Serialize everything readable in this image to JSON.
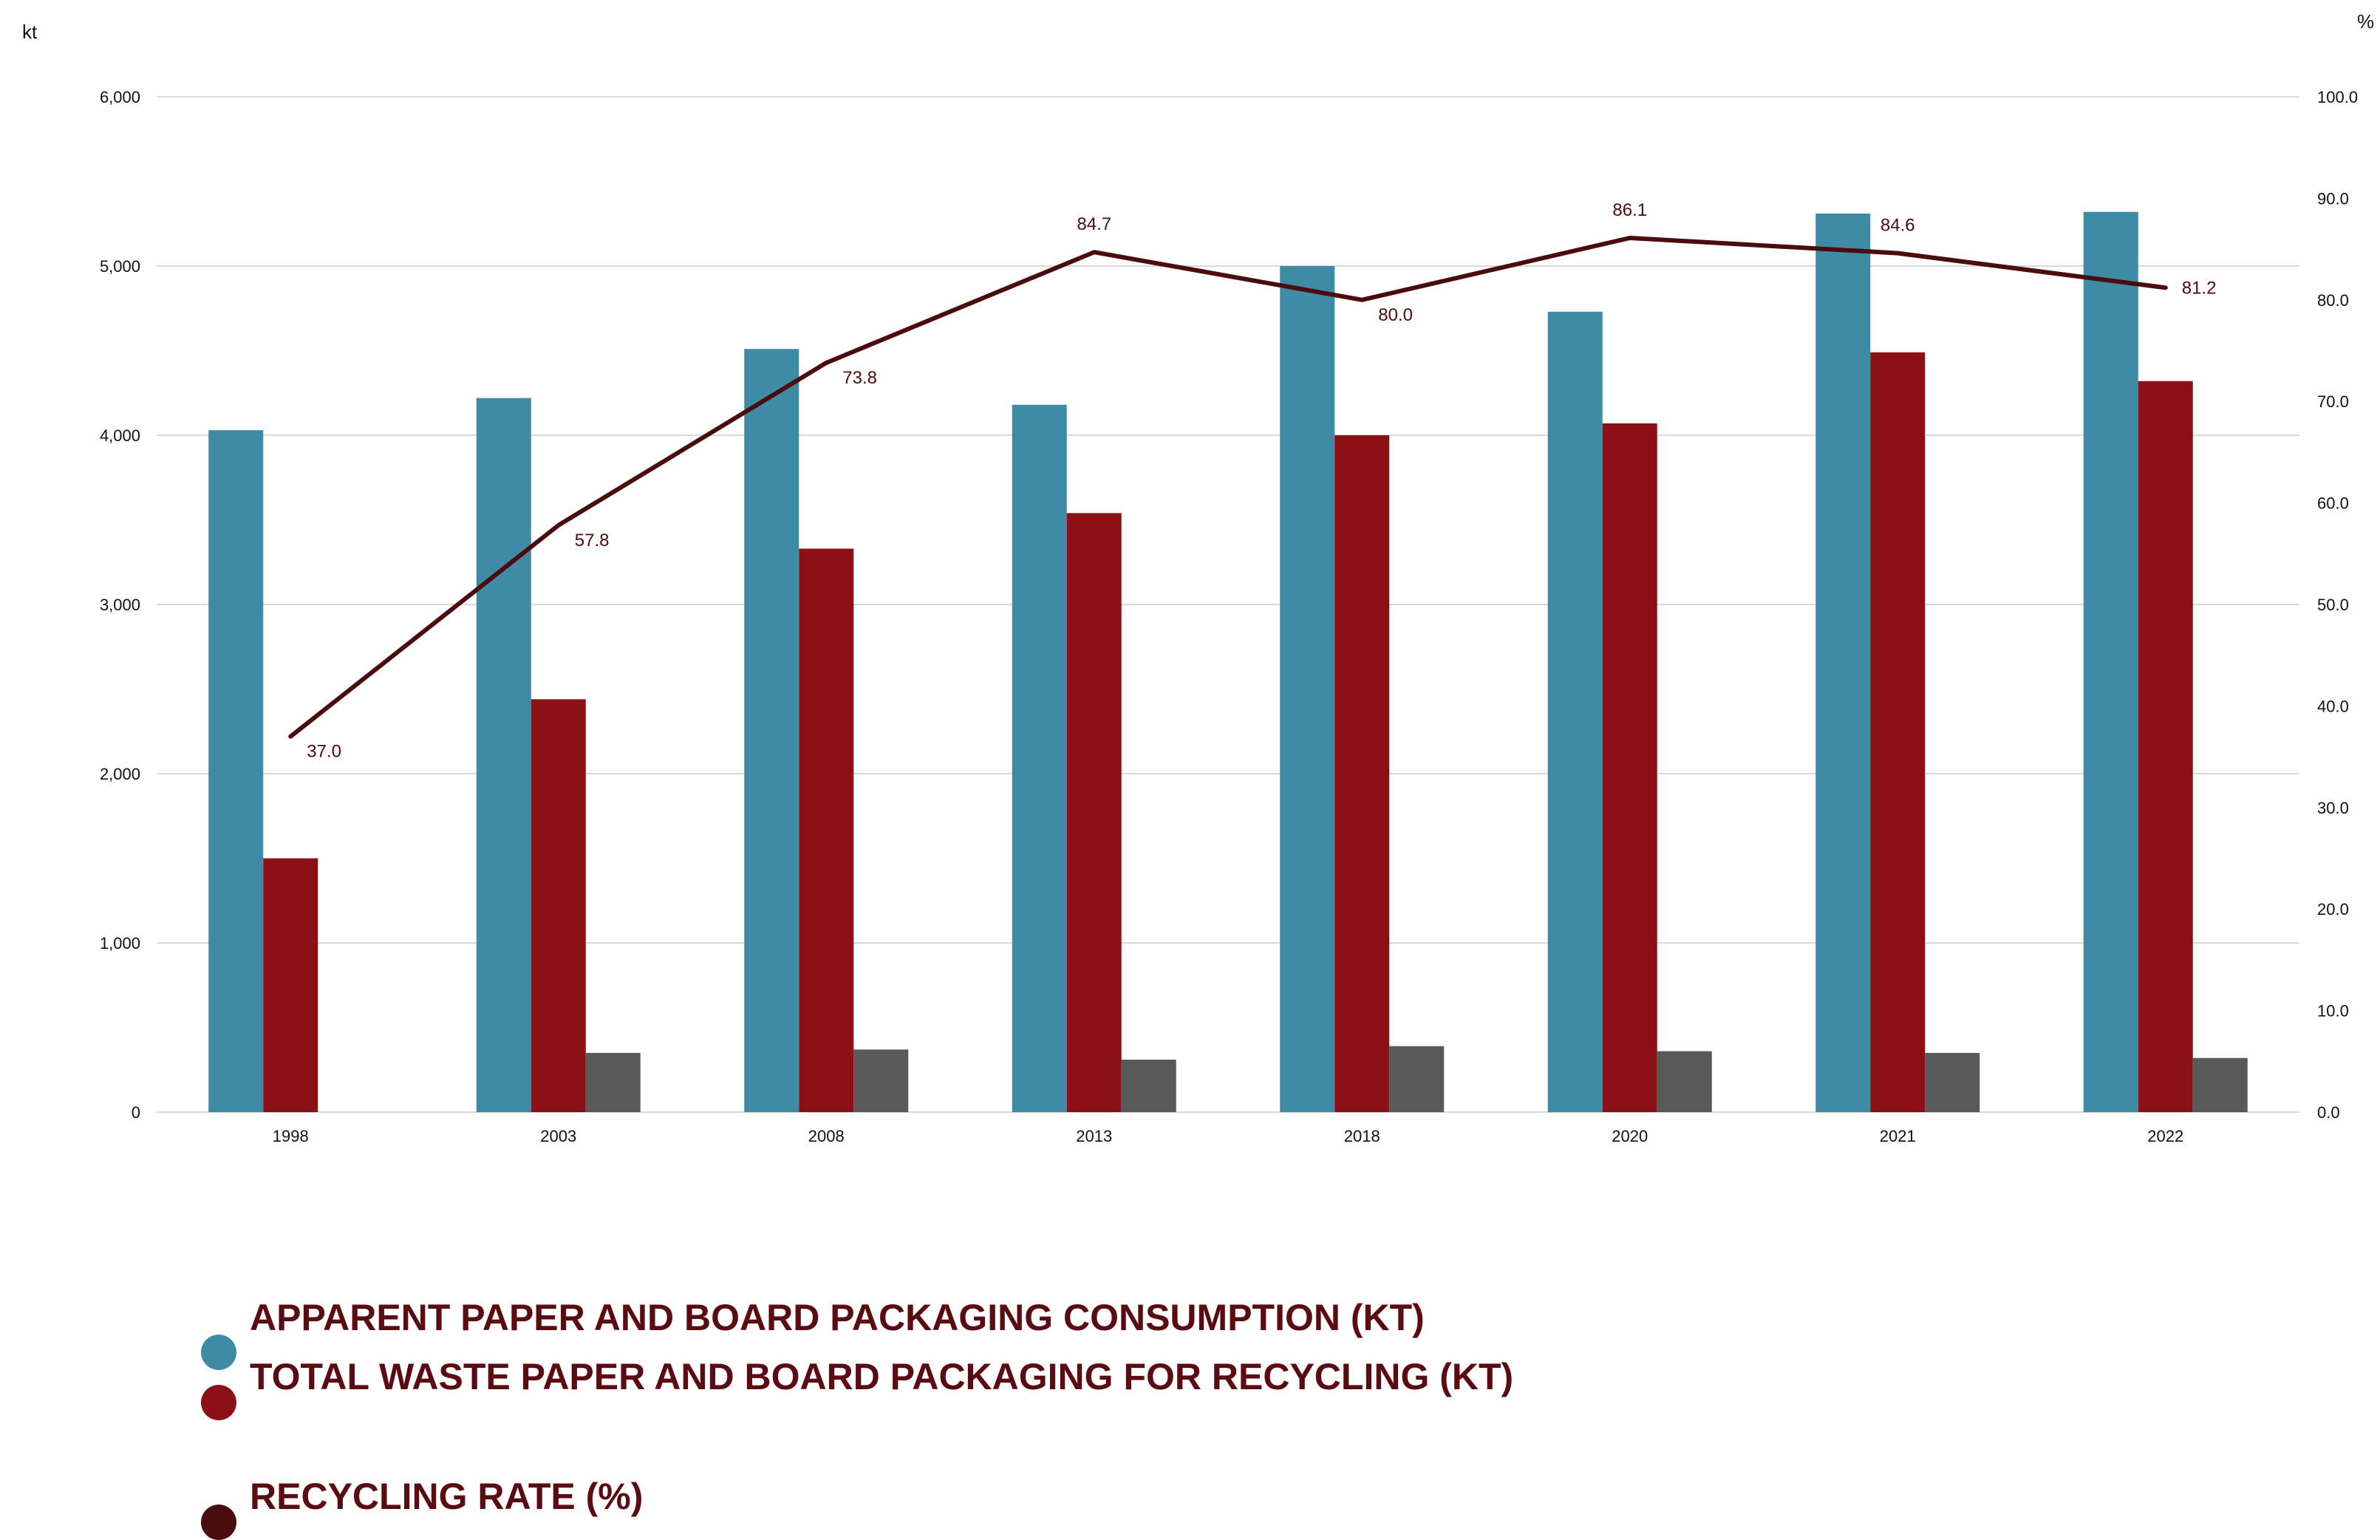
{
  "chart_data": {
    "type": "bar",
    "categories": [
      "1998",
      "2003",
      "2008",
      "2013",
      "2018",
      "2020",
      "2021",
      "2022"
    ],
    "y_left_label": "kt",
    "y_right_label": "%",
    "ylim_left": [
      0,
      6000
    ],
    "ylim_right": [
      0,
      100
    ],
    "y_left_ticks": [
      "0",
      "1,000",
      "2,000",
      "3,000",
      "4,000",
      "5,000",
      "6,000"
    ],
    "y_right_ticks": [
      "0.0",
      "10.0",
      "20.0",
      "30.0",
      "40.0",
      "50.0",
      "60.0",
      "70.0",
      "80.0",
      "90.0",
      "100.0"
    ],
    "grid": true,
    "legend_placement": "bottom-left",
    "series": [
      {
        "name": "APPARENT PAPER AND BOARD PACKAGING CONSUMPTION (KT)",
        "type": "bar",
        "axis": "left",
        "color": "#3f8ba6",
        "values": [
          4030,
          4220,
          4510,
          4180,
          5000,
          4730,
          5310,
          5320
        ]
      },
      {
        "name": "TOTAL WASTE PAPER AND BOARD PACKAGING FOR RECYCLING (KT)",
        "type": "bar",
        "axis": "left",
        "color": "#8b1116",
        "values": [
          1500,
          2440,
          3330,
          3540,
          4000,
          4070,
          4490,
          4320
        ]
      },
      {
        "type": "bar",
        "axis": "left",
        "color": "#595959",
        "values": [
          null,
          350,
          370,
          310,
          390,
          360,
          350,
          320
        ]
      },
      {
        "name": "RECYCLING RATE (%)",
        "type": "line",
        "axis": "right",
        "color": "#4a0c0c",
        "values": [
          37.0,
          57.8,
          73.8,
          84.7,
          80.0,
          86.1,
          84.6,
          81.2
        ],
        "labels": [
          "37.0",
          "57.8",
          "73.8",
          "84.7",
          "80.0",
          "86.1",
          "84.6",
          "81.2"
        ]
      }
    ]
  },
  "legend": {
    "items": [
      {
        "label": "APPARENT PAPER AND BOARD PACKAGING CONSUMPTION (KT)",
        "color": "#3f8ba6",
        "text_color": "#5a0c12"
      },
      {
        "label": "TOTAL WASTE PAPER AND BOARD PACKAGING FOR RECYCLING (KT)",
        "color": "#8b1116",
        "text_color": "#5a0c12"
      },
      {
        "label": "RECYCLING RATE (%)",
        "color": "#4a0c0c",
        "text_color": "#5a0c12"
      }
    ]
  }
}
